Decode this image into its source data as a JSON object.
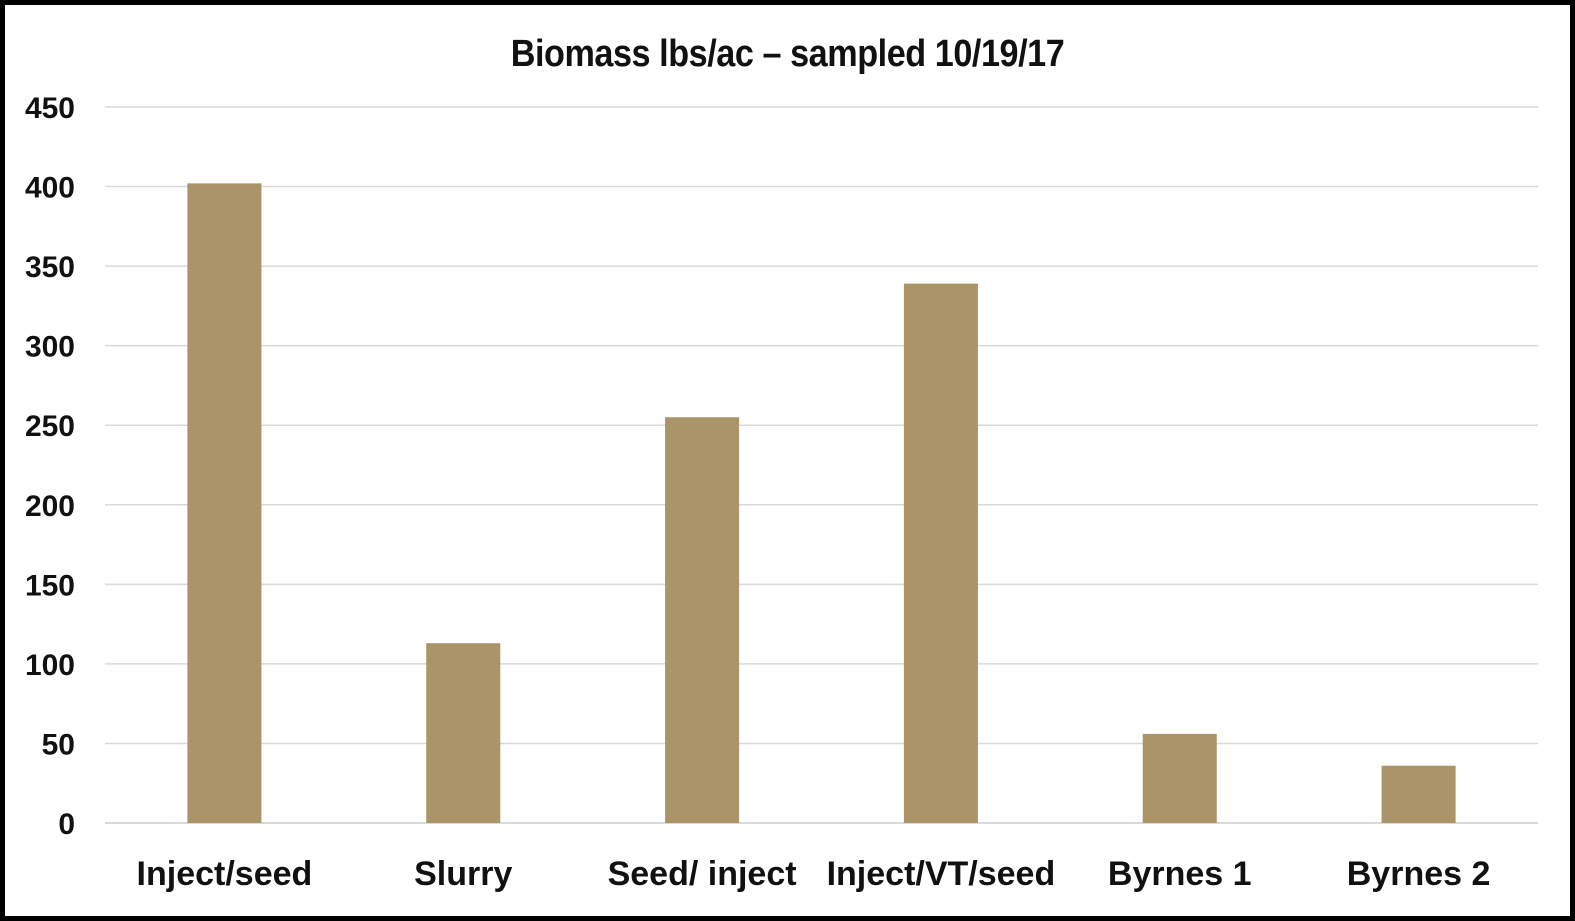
{
  "chart_data": {
    "type": "bar",
    "title": "Biomass lbs/ac – sampled 10/19/17",
    "xlabel": "",
    "ylabel": "",
    "categories": [
      "Inject/seed",
      "Slurry",
      "Seed/ inject",
      "Inject/VT/seed",
      "Byrnes 1",
      "Byrnes 2"
    ],
    "values": [
      402,
      113,
      255,
      339,
      56,
      36
    ],
    "ylim": [
      0,
      450
    ],
    "yticks": [
      0,
      50,
      100,
      150,
      200,
      250,
      300,
      350,
      400,
      450
    ],
    "grid": true,
    "legend": "none",
    "bar_color": "#AA9468",
    "grid_color": "#d9d9d9"
  }
}
